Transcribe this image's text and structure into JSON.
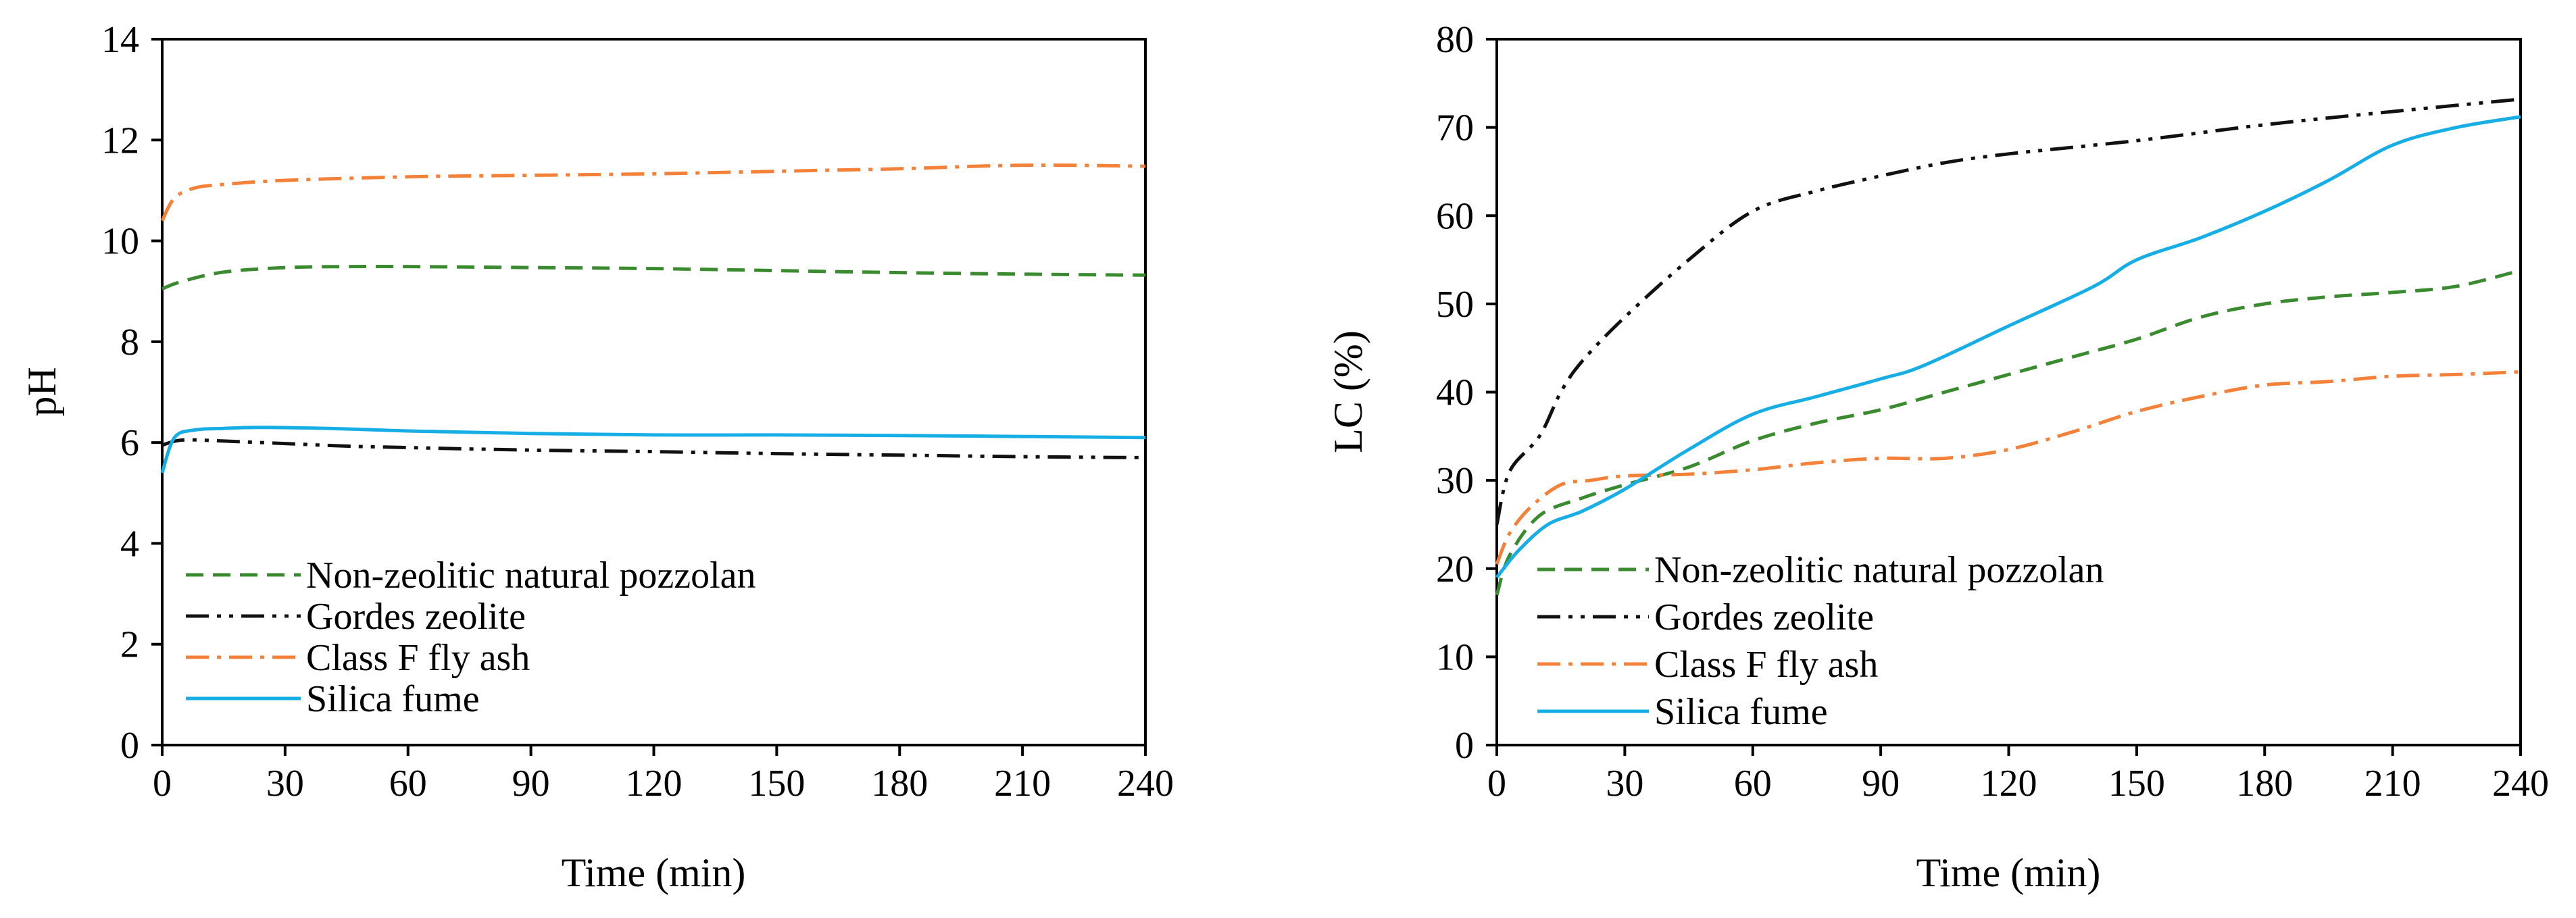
{
  "chart_data": [
    {
      "type": "line",
      "title": "",
      "xlabel": "Time (min)",
      "ylabel": "pH",
      "xlim": [
        0,
        240
      ],
      "ylim": [
        0,
        14
      ],
      "xticks": [
        0,
        30,
        60,
        90,
        120,
        150,
        180,
        210,
        240
      ],
      "yticks": [
        0,
        2,
        4,
        6,
        8,
        10,
        12,
        14
      ],
      "grid": false,
      "legend_position": "bottom-left",
      "series": [
        {
          "name": "Non-zeolitic natural pozzolan",
          "color": "#3a8a2f",
          "dash": "dashed",
          "x": [
            0,
            5,
            15,
            30,
            45,
            60,
            90,
            120,
            150,
            180,
            210,
            240
          ],
          "y": [
            9.05,
            9.2,
            9.38,
            9.47,
            9.49,
            9.49,
            9.47,
            9.45,
            9.41,
            9.37,
            9.34,
            9.32
          ]
        },
        {
          "name": "Gordes zeolite",
          "color": "#111111",
          "dash": "dash-dot-dot",
          "x": [
            0,
            5,
            15,
            30,
            45,
            60,
            90,
            120,
            150,
            180,
            210,
            240
          ],
          "y": [
            5.95,
            6.05,
            6.03,
            5.98,
            5.93,
            5.9,
            5.85,
            5.82,
            5.78,
            5.75,
            5.72,
            5.7
          ]
        },
        {
          "name": "Class F fly ash",
          "color": "#f4813a",
          "dash": "dash-dot",
          "x": [
            0,
            3,
            8,
            15,
            30,
            60,
            90,
            120,
            150,
            180,
            210,
            240
          ],
          "y": [
            10.4,
            10.85,
            11.05,
            11.12,
            11.2,
            11.27,
            11.3,
            11.33,
            11.38,
            11.43,
            11.5,
            11.48
          ]
        },
        {
          "name": "Silica fume",
          "color": "#17aee6",
          "dash": "solid",
          "x": [
            0,
            3,
            8,
            15,
            25,
            45,
            60,
            90,
            120,
            150,
            180,
            210,
            240
          ],
          "y": [
            5.4,
            6.1,
            6.25,
            6.28,
            6.3,
            6.27,
            6.23,
            6.18,
            6.15,
            6.15,
            6.14,
            6.12,
            6.1
          ]
        }
      ]
    },
    {
      "type": "line",
      "title": "",
      "xlabel": "Time (min)",
      "ylabel": "LC (%)",
      "xlim": [
        0,
        240
      ],
      "ylim": [
        0,
        80
      ],
      "xticks": [
        0,
        30,
        60,
        90,
        120,
        150,
        180,
        210,
        240
      ],
      "yticks": [
        0,
        10,
        20,
        30,
        40,
        50,
        60,
        70,
        80
      ],
      "grid": false,
      "legend_position": "bottom-left",
      "series": [
        {
          "name": "Non-zeolitic natural pozzolan",
          "color": "#3a8a2f",
          "dash": "dashed",
          "x": [
            0,
            3,
            10,
            20,
            30,
            45,
            60,
            75,
            90,
            105,
            120,
            135,
            150,
            165,
            180,
            195,
            210,
            225,
            240
          ],
          "y": [
            17,
            21.5,
            26,
            28,
            29.5,
            31.5,
            34.5,
            36.5,
            38,
            40,
            42,
            44,
            46,
            48.5,
            50,
            50.8,
            51.3,
            52,
            53.8
          ]
        },
        {
          "name": "Gordes zeolite",
          "color": "#111111",
          "dash": "dash-dot-dot",
          "x": [
            0,
            3,
            10,
            15,
            20,
            30,
            45,
            60,
            75,
            90,
            105,
            120,
            150,
            180,
            210,
            240
          ],
          "y": [
            25,
            31,
            35,
            40,
            43.5,
            48.5,
            55,
            60.5,
            62.8,
            64.5,
            66,
            67,
            68.5,
            70.3,
            71.8,
            73.2
          ]
        },
        {
          "name": "Class F fly ash",
          "color": "#f4813a",
          "dash": "dash-dot",
          "x": [
            0,
            3,
            8,
            15,
            22,
            30,
            45,
            60,
            75,
            90,
            105,
            120,
            135,
            150,
            165,
            180,
            195,
            210,
            225,
            240
          ],
          "y": [
            20.5,
            24,
            27,
            29.5,
            30,
            30.5,
            30.7,
            31.2,
            32,
            32.5,
            32.5,
            33.5,
            35.5,
            37.8,
            39.5,
            40.8,
            41.2,
            41.8,
            42,
            42.3
          ]
        },
        {
          "name": "Silica fume",
          "color": "#17aee6",
          "dash": "solid",
          "x": [
            0,
            5,
            12,
            20,
            30,
            45,
            60,
            75,
            90,
            100,
            120,
            140,
            150,
            165,
            180,
            195,
            210,
            225,
            240
          ],
          "y": [
            19,
            22,
            25,
            26.5,
            29,
            33.5,
            37.5,
            39.5,
            41.5,
            43,
            47.5,
            52,
            55,
            57.5,
            60.5,
            64,
            68,
            70,
            71.2
          ]
        }
      ]
    }
  ]
}
